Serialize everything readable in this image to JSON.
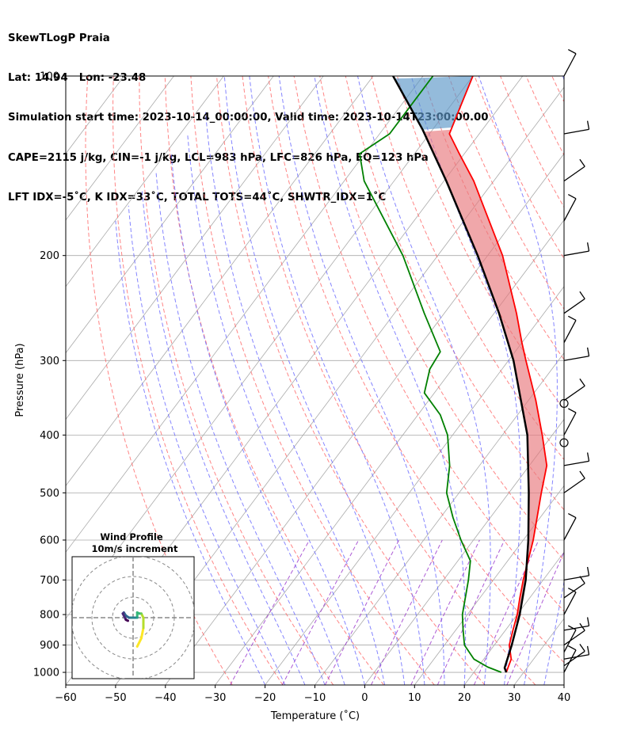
{
  "header": {
    "line1": "SkewTLogP Praia",
    "line2": "Lat: 14.94   Lon: -23.48",
    "line3": "Simulation start time: 2023-10-14_00:00:00, Valid time: 2023-10-14T23:00:00.00",
    "line4": "CAPE=2115 j/kg, CIN=-1 j/kg, LCL=983 hPa, LFC=826 hPa, EQ=123 hPa",
    "line5": "LFT IDX=-5˚C, K IDX=33˚C, TOTAL TOTS=44˚C, SHWTR_IDX=1˚C"
  },
  "inset": {
    "title_line1": "Wind Profile",
    "title_line2": "10m/s increment"
  },
  "chart_data": {
    "type": "skew-t log-p",
    "xlabel": "Temperature (˚C)",
    "ylabel": "Pressure (hPa)",
    "xlim": [
      -60,
      40
    ],
    "ylim_hpa": [
      1050,
      100
    ],
    "y_scale": "log",
    "x_ticks": [
      -60,
      -50,
      -40,
      -30,
      -20,
      -10,
      0,
      10,
      20,
      30,
      40
    ],
    "x_tick_labels": [
      "−60",
      "−50",
      "−40",
      "−30",
      "−20",
      "−10",
      "0",
      "10",
      "20",
      "30",
      "40"
    ],
    "y_ticks": [
      100,
      200,
      300,
      400,
      500,
      600,
      700,
      800,
      900,
      1000
    ],
    "grid": true,
    "colors": {
      "temperature": "#ff0000",
      "dewpoint": "#008000",
      "parcel": "#000000",
      "cape_fill": "#e8787d",
      "cin_fill": "#5a97c8",
      "dry_adiabat": "#ff6666",
      "moist_adiabat": "#6666ff",
      "mixing_ratio": "#9933cc",
      "isotherm": "#aaaaaa"
    },
    "temperature_profile": [
      {
        "p": 1000,
        "t": 26.5
      },
      {
        "p": 950,
        "t": 25.5
      },
      {
        "p": 900,
        "t": 23.0
      },
      {
        "p": 850,
        "t": 21.5
      },
      {
        "p": 800,
        "t": 20.0
      },
      {
        "p": 750,
        "t": 18.0
      },
      {
        "p": 700,
        "t": 16.0
      },
      {
        "p": 600,
        "t": 12.0
      },
      {
        "p": 500,
        "t": 6.5
      },
      {
        "p": 450,
        "t": 3.5
      },
      {
        "p": 400,
        "t": -2.0
      },
      {
        "p": 350,
        "t": -8.5
      },
      {
        "p": 300,
        "t": -16.5
      },
      {
        "p": 280,
        "t": -20.0
      },
      {
        "p": 250,
        "t": -25.5
      },
      {
        "p": 200,
        "t": -37.0
      },
      {
        "p": 150,
        "t": -54.0
      },
      {
        "p": 135,
        "t": -61.0
      },
      {
        "p": 125,
        "t": -66.0
      },
      {
        "p": 115,
        "t": -67.5
      },
      {
        "p": 100,
        "t": -70.0
      }
    ],
    "dewpoint_profile": [
      {
        "p": 1000,
        "t": 25.5
      },
      {
        "p": 980,
        "t": 22.0
      },
      {
        "p": 950,
        "t": 18.0
      },
      {
        "p": 900,
        "t": 14.0
      },
      {
        "p": 850,
        "t": 11.5
      },
      {
        "p": 800,
        "t": 9.0
      },
      {
        "p": 700,
        "t": 5.0
      },
      {
        "p": 650,
        "t": 2.5
      },
      {
        "p": 600,
        "t": -2.5
      },
      {
        "p": 550,
        "t": -7.5
      },
      {
        "p": 500,
        "t": -12.5
      },
      {
        "p": 450,
        "t": -16.0
      },
      {
        "p": 400,
        "t": -21.0
      },
      {
        "p": 370,
        "t": -25.5
      },
      {
        "p": 340,
        "t": -32.0
      },
      {
        "p": 310,
        "t": -34.5
      },
      {
        "p": 290,
        "t": -35.0
      },
      {
        "p": 250,
        "t": -44.0
      },
      {
        "p": 200,
        "t": -57.0
      },
      {
        "p": 150,
        "t": -76.0
      },
      {
        "p": 135,
        "t": -81.0
      },
      {
        "p": 125,
        "t": -78.0
      },
      {
        "p": 100,
        "t": -78.0
      }
    ],
    "parcel_profile": [
      {
        "p": 1000,
        "t": 26.5
      },
      {
        "p": 983,
        "t": 25.5
      },
      {
        "p": 900,
        "t": 23.5
      },
      {
        "p": 800,
        "t": 20.5
      },
      {
        "p": 700,
        "t": 16.5
      },
      {
        "p": 600,
        "t": 11.0
      },
      {
        "p": 500,
        "t": 4.0
      },
      {
        "p": 400,
        "t": -5.0
      },
      {
        "p": 300,
        "t": -19.0
      },
      {
        "p": 250,
        "t": -29.0
      },
      {
        "p": 200,
        "t": -42.0
      },
      {
        "p": 150,
        "t": -59.5
      },
      {
        "p": 123,
        "t": -72.0
      },
      {
        "p": 100,
        "t": -86.0
      }
    ],
    "wind_barbs_hpa": [
      1000,
      975,
      950,
      925,
      900,
      850,
      800,
      750,
      700,
      600,
      500,
      450,
      400,
      350,
      300,
      280,
      250,
      200,
      175,
      150,
      125,
      100
    ],
    "calm_markers_hpa": [
      412,
      354
    ],
    "hodograph": {
      "rings_ms": [
        10,
        20,
        30
      ],
      "points": [
        {
          "u": 2,
          "v": -14
        },
        {
          "u": 4,
          "v": -10
        },
        {
          "u": 5,
          "v": -5
        },
        {
          "u": 5,
          "v": 0
        },
        {
          "u": 4,
          "v": 2
        },
        {
          "u": 3,
          "v": 2
        },
        {
          "u": 2,
          "v": 2.5
        },
        {
          "u": 2,
          "v": 0
        },
        {
          "u": 1,
          "v": 0
        },
        {
          "u": -1,
          "v": 0
        },
        {
          "u": -2,
          "v": 0
        },
        {
          "u": -3.5,
          "v": 1
        },
        {
          "u": -4.5,
          "v": 2.5
        },
        {
          "u": -5,
          "v": 2
        },
        {
          "u": -4,
          "v": 0
        },
        {
          "u": -3.5,
          "v": -1
        },
        {
          "u": -2.5,
          "v": -1.5
        }
      ]
    }
  }
}
